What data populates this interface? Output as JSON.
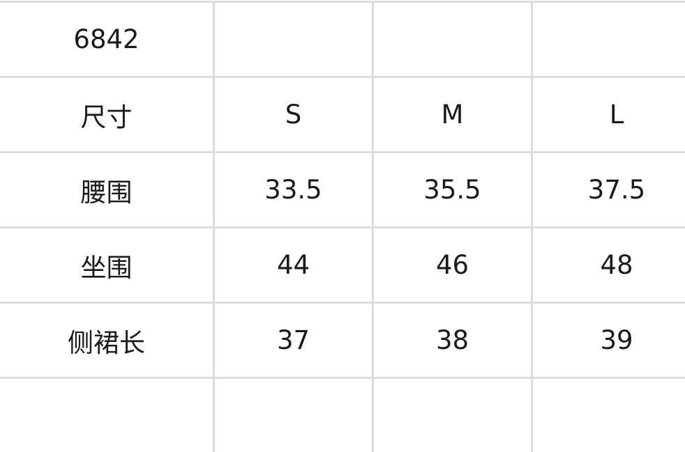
{
  "table": {
    "rows": [
      [
        "6842",
        "",
        "",
        ""
      ],
      [
        "尺寸",
        "S",
        "M",
        "L"
      ],
      [
        "腰围",
        "33.5",
        "35.5",
        "37.5"
      ],
      [
        "坐围",
        "44",
        "46",
        "48"
      ],
      [
        "侧裙长",
        "37",
        "38",
        "39"
      ],
      [
        "",
        "",
        "",
        ""
      ]
    ]
  }
}
